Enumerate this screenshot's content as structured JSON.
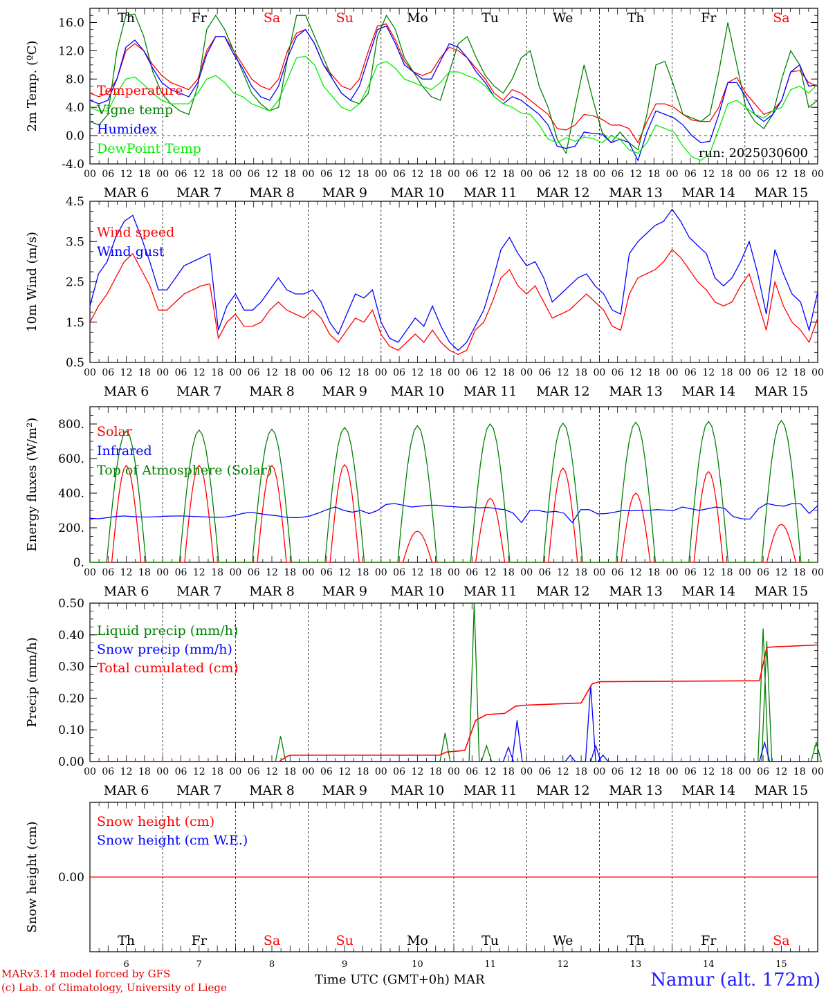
{
  "chart_data": [
    {
      "type": "line",
      "ylabel": "2m Temp. (ºC)",
      "ylim": [
        -4,
        18
      ],
      "yticks": [
        "16.0",
        "12.0",
        "8.0",
        "4.0",
        "0.0",
        "-4.0"
      ],
      "ytick_values": [
        16,
        12,
        8,
        4,
        0,
        -4
      ],
      "annotation": "run: 2025030600",
      "series": [
        {
          "name": "Temperature",
          "color": "#ff0000",
          "values": [
            6,
            5.5,
            6,
            8,
            12,
            13,
            12,
            10,
            8.5,
            7.5,
            7,
            6.5,
            8,
            12,
            14,
            14,
            12,
            10,
            8,
            7,
            6.5,
            8,
            12,
            14.5,
            15,
            13,
            10,
            8.5,
            7,
            6.5,
            8,
            12,
            15.5,
            15.8,
            13.5,
            10.5,
            9,
            8.5,
            9,
            11,
            12.5,
            12,
            11,
            9.5,
            8,
            6,
            5,
            6.5,
            6,
            5,
            4,
            3,
            1,
            0.8,
            1.5,
            3,
            2.8,
            2.3,
            1.5,
            1.5,
            1,
            -1,
            2,
            4.5,
            4.5,
            4,
            3,
            2.2,
            2,
            2,
            4,
            7.5,
            8.2,
            6,
            4.5,
            3,
            3.5,
            5,
            9,
            9.2,
            7.5,
            7
          ]
        },
        {
          "name": "Vigne temp",
          "color": "#008000",
          "values": [
            2,
            1.5,
            3,
            12,
            17,
            17.2,
            14,
            9,
            6,
            4.5,
            3.5,
            3,
            7,
            15,
            17,
            15,
            12,
            9,
            6,
            4.5,
            3.5,
            4,
            11,
            17,
            17,
            14,
            11,
            8,
            6,
            5,
            4.5,
            6,
            14,
            17,
            15,
            11,
            9,
            7,
            5.5,
            5,
            9,
            13,
            14,
            11,
            8.5,
            7,
            6,
            8,
            11,
            12,
            7,
            4,
            -0.5,
            -2.5,
            4,
            10,
            5,
            0.5,
            -1,
            0.5,
            -1,
            -2,
            3,
            10,
            10.5,
            7,
            3,
            2.5,
            2,
            3,
            9,
            16,
            10,
            4,
            2,
            1,
            3,
            8,
            12,
            10,
            4,
            5
          ]
        },
        {
          "name": "Humidex",
          "color": "#0000ff",
          "values": [
            5,
            4.5,
            5,
            8,
            12.5,
            13.5,
            12,
            9.5,
            7.5,
            6.5,
            6,
            5.5,
            7.5,
            11.5,
            14,
            14,
            11.5,
            9.5,
            7,
            5.5,
            5,
            7,
            11,
            14,
            15,
            13,
            10,
            8,
            6,
            5,
            7,
            11,
            15,
            15.5,
            13,
            10,
            9,
            8,
            8,
            10.5,
            13,
            12.5,
            11,
            9,
            7.5,
            5.5,
            4.5,
            5.5,
            5,
            4,
            3,
            1.5,
            -1.5,
            -1.8,
            -1.5,
            0.5,
            0.3,
            0.2,
            -1,
            -0.5,
            -1,
            -3.5,
            0.5,
            3.5,
            3,
            2.5,
            1.5,
            0,
            -1,
            -0.8,
            3,
            7.5,
            7.5,
            5.5,
            3,
            2,
            3,
            5,
            9,
            10,
            7,
            7.2
          ]
        },
        {
          "name": "DewPoint Temp",
          "color": "#00ee00",
          "values": [
            4,
            3.5,
            3.5,
            6,
            8,
            8.3,
            7.2,
            6,
            5,
            4.5,
            4.5,
            4.5,
            6,
            8,
            8.5,
            7.5,
            6,
            5.5,
            4.5,
            4,
            3.5,
            5,
            8,
            11,
            11.2,
            10,
            7,
            5.5,
            4,
            3.5,
            4.5,
            7,
            10,
            10.5,
            9.5,
            8,
            7.5,
            7,
            6.5,
            7.5,
            9,
            9,
            8.5,
            8,
            7,
            5.5,
            4.5,
            4,
            3.2,
            3,
            1.5,
            -0.5,
            -1,
            -0.3,
            -0.8,
            -0.2,
            -0.4,
            -1,
            0,
            -0.5,
            -2,
            -2.5,
            -1,
            1.5,
            1,
            0.5,
            -1.5,
            -3,
            -3.5,
            -2.5,
            1,
            4.5,
            5,
            4,
            3,
            2.5,
            3.5,
            4,
            6.5,
            7,
            6,
            7.3
          ]
        }
      ]
    },
    {
      "type": "line",
      "ylabel": "10m Wind (m/s)",
      "ylim": [
        0.5,
        4.5
      ],
      "yticks": [
        "4.5",
        "3.5",
        "2.5",
        "1.5",
        "0.5"
      ],
      "ytick_values": [
        4.5,
        3.5,
        2.5,
        1.5,
        0.5
      ],
      "series": [
        {
          "name": "Wind speed",
          "color": "#ff0000",
          "values": [
            1.5,
            1.9,
            2.2,
            2.6,
            3,
            3.2,
            2.8,
            2.4,
            1.8,
            1.8,
            2.0,
            2.2,
            2.3,
            2.4,
            2.45,
            1.1,
            1.5,
            1.7,
            1.4,
            1.4,
            1.5,
            1.8,
            2.0,
            1.8,
            1.7,
            1.6,
            1.8,
            1.6,
            1.2,
            1.0,
            1.3,
            1.6,
            1.5,
            1.8,
            1.2,
            0.9,
            0.8,
            1.0,
            1.2,
            1.0,
            1.3,
            1.0,
            0.8,
            0.7,
            0.8,
            1.3,
            1.5,
            2.0,
            2.6,
            2.8,
            2.4,
            2.2,
            2.4,
            2.0,
            1.6,
            1.7,
            1.8,
            2.0,
            2.2,
            2.0,
            1.8,
            1.4,
            1.3,
            2.2,
            2.6,
            2.7,
            2.8,
            3.0,
            3.3,
            3.1,
            2.8,
            2.5,
            2.3,
            2.0,
            1.9,
            2.0,
            2.4,
            2.7,
            2.0,
            1.3,
            2.5,
            1.9,
            1.5,
            1.3,
            1.0,
            1.6
          ]
        },
        {
          "name": "Wind gust",
          "color": "#0000ff",
          "values": [
            1.9,
            2.7,
            3.0,
            3.6,
            4.0,
            4.15,
            3.6,
            3.0,
            2.3,
            2.3,
            2.6,
            2.9,
            3.0,
            3.1,
            3.2,
            1.3,
            1.9,
            2.2,
            1.8,
            1.8,
            2.0,
            2.3,
            2.6,
            2.3,
            2.2,
            2.2,
            2.3,
            2.0,
            1.5,
            1.2,
            1.7,
            2.2,
            2.1,
            2.3,
            1.5,
            1.1,
            1.0,
            1.3,
            1.6,
            1.4,
            1.9,
            1.4,
            1.0,
            0.8,
            1.0,
            1.4,
            1.8,
            2.5,
            3.3,
            3.6,
            3.2,
            2.9,
            3.0,
            2.6,
            2.0,
            2.2,
            2.4,
            2.6,
            2.7,
            2.4,
            2.2,
            1.8,
            1.7,
            3.2,
            3.5,
            3.7,
            3.9,
            4.0,
            4.3,
            4.0,
            3.6,
            3.4,
            3.2,
            2.6,
            2.4,
            2.6,
            3.0,
            3.5,
            2.7,
            1.7,
            3.3,
            2.7,
            2.2,
            2.0,
            1.3,
            2.25
          ]
        }
      ]
    },
    {
      "type": "line",
      "ylabel": "Energy fluxes (W/m²)",
      "ylim": [
        0,
        900
      ],
      "yticks": [
        "800.",
        "600.",
        "400.",
        "200.",
        "0."
      ],
      "ytick_values": [
        800,
        600,
        400,
        200,
        0
      ],
      "series": [
        {
          "name": "Solar",
          "color": "#ff0000",
          "peaks": [
            560,
            560,
            560,
            565,
            180,
            370,
            545,
            400,
            525,
            220
          ]
        },
        {
          "name": "Infrared",
          "color": "#0000ff",
          "values": [
            255,
            252,
            258,
            265,
            268,
            265,
            262,
            262,
            264,
            267,
            268,
            268,
            266,
            264,
            262,
            260,
            262,
            270,
            282,
            290,
            282,
            275,
            270,
            262,
            258,
            260,
            268,
            285,
            305,
            320,
            300,
            290,
            300,
            282,
            300,
            335,
            340,
            330,
            320,
            325,
            330,
            330,
            325,
            322,
            318,
            320,
            315,
            318,
            310,
            305,
            285,
            230,
            300,
            300,
            290,
            295,
            285,
            230,
            305,
            305,
            280,
            282,
            290,
            300,
            298,
            300,
            300,
            305,
            302,
            300,
            320,
            310,
            300,
            310,
            320,
            312,
            265,
            252,
            250,
            310,
            340,
            330,
            325,
            340,
            338,
            283,
            328
          ]
        },
        {
          "name": "Top of Atmosphere (Solar)",
          "color": "#008000",
          "peaks": [
            760,
            765,
            770,
            780,
            790,
            800,
            805,
            810,
            815,
            820
          ]
        }
      ]
    },
    {
      "type": "line",
      "ylabel": "Precip (mm/h)",
      "ylim": [
        0,
        0.5
      ],
      "yticks": [
        "0.50",
        "0.40",
        "0.30",
        "0.20",
        "0.10",
        "0.00"
      ],
      "ytick_values": [
        0.5,
        0.4,
        0.3,
        0.2,
        0.1,
        0
      ],
      "series": [
        {
          "name": "Liquid precip (mm/h)",
          "color": "#008000",
          "spikes": [
            [
              2.62,
              0.08
            ],
            [
              4.88,
              0.09
            ],
            [
              5.28,
              0.5
            ],
            [
              5.45,
              0.05
            ],
            [
              9.25,
              0.42
            ],
            [
              9.3,
              0.38
            ],
            [
              9.98,
              0.06
            ]
          ]
        },
        {
          "name": "Snow precip (mm/h)",
          "color": "#0000ff",
          "spikes": [
            [
              5.75,
              0.045
            ],
            [
              5.87,
              0.13
            ],
            [
              6.6,
              0.02
            ],
            [
              6.88,
              0.24
            ],
            [
              6.95,
              0.05
            ],
            [
              7.05,
              0.02
            ],
            [
              9.27,
              0.06
            ]
          ]
        },
        {
          "name": "Total cumulated (cm)",
          "color": "#ff0000",
          "values": [
            [
              0,
              0
            ],
            [
              2.6,
              0
            ],
            [
              2.7,
              0.015
            ],
            [
              2.75,
              0.02
            ],
            [
              4.8,
              0.02
            ],
            [
              4.9,
              0.03
            ],
            [
              5.15,
              0.035
            ],
            [
              5.3,
              0.13
            ],
            [
              5.45,
              0.148
            ],
            [
              5.7,
              0.152
            ],
            [
              5.85,
              0.175
            ],
            [
              6.0,
              0.178
            ],
            [
              6.75,
              0.185
            ],
            [
              6.9,
              0.245
            ],
            [
              7.0,
              0.252
            ],
            [
              9.2,
              0.255
            ],
            [
              9.3,
              0.36
            ],
            [
              9.4,
              0.362
            ],
            [
              10,
              0.368
            ]
          ]
        }
      ]
    },
    {
      "type": "line",
      "ylabel": "Snow height (cm)",
      "ylim": [
        -1,
        1
      ],
      "yticks": [
        "0.00"
      ],
      "ytick_values": [
        0
      ],
      "series": [
        {
          "name": "Snow height (cm)",
          "color": "#ff0000",
          "values": [
            0,
            0
          ]
        },
        {
          "name": "Snow height (cm W.E.)",
          "color": "#0000ff",
          "values": []
        }
      ]
    }
  ],
  "days": {
    "weekday": [
      "Th",
      "Fr",
      "Sa",
      "Su",
      "Mo",
      "Tu",
      "We",
      "Th",
      "Fr",
      "Sa"
    ],
    "weekend": [
      false,
      false,
      true,
      true,
      false,
      false,
      false,
      false,
      false,
      true
    ],
    "date": [
      "MAR  6",
      "MAR  7",
      "MAR  8",
      "MAR  9",
      "MAR 10",
      "MAR 11",
      "MAR 12",
      "MAR 13",
      "MAR 14",
      "MAR 15"
    ],
    "daynum": [
      "6",
      "7",
      "8",
      "9",
      "10",
      "11",
      "12",
      "13",
      "14",
      "15"
    ],
    "hours": [
      "00",
      "06",
      "12",
      "18"
    ],
    "final_hour": "00"
  },
  "colors": {
    "weekday": "#000000",
    "weekend": "#ff0000"
  },
  "footer": {
    "credit1": "MARv3.14 model forced by GFS",
    "credit2": "(c) Lab. of Climatology, University of Liege",
    "xtitle": "Time UTC (GMT+0h) MAR",
    "station": "Namur (alt. 172m)"
  }
}
